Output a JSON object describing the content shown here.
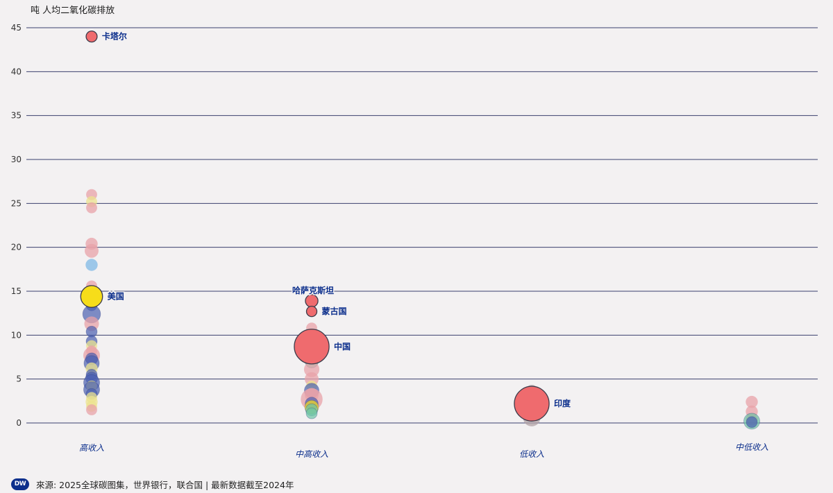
{
  "ylabel": "吨 人均二氧化碳排放",
  "footer": {
    "logo_text": "DW",
    "logo_color": "#0c2f8c",
    "source": "來源: 2025全球碳图集，世界银行，联合国 | 最新数据截至2024年"
  },
  "chart_data": {
    "type": "scatter",
    "ylabel": "吨 人均二氧化碳排放",
    "ylim": [
      0,
      45
    ],
    "yticks": [
      0,
      5,
      10,
      15,
      20,
      25,
      30,
      35,
      40,
      45
    ],
    "grid": true,
    "categories": [
      "高收入",
      "中高收入",
      "低收入",
      "中低收入"
    ],
    "colors": {
      "red": "#ef6b6e",
      "red_light": "#e8a1a8",
      "yellow": "#f6dd1a",
      "yellow_light": "#ece38f",
      "blue": "#4a60b0",
      "light_blue": "#7fb8e6",
      "teal": "#6cc4a6",
      "gray": "#b2a2a6",
      "label": "#0c2f8c"
    },
    "highlights": [
      {
        "label": "卡塔尔",
        "category": "高收入",
        "y": 44.0,
        "size": 0.3,
        "color": "red"
      },
      {
        "label": "美国",
        "category": "高收入",
        "y": 14.4,
        "size": 2.0,
        "color": "yellow"
      },
      {
        "label": "哈萨克斯坦",
        "category": "中高收入",
        "y": 13.9,
        "size": 0.45,
        "color": "red"
      },
      {
        "label": "蒙古国",
        "category": "中高收入",
        "y": 12.7,
        "size": 0.25,
        "color": "red"
      },
      {
        "label": "中国",
        "category": "中高收入",
        "y": 8.7,
        "size": 6.0,
        "color": "red"
      },
      {
        "label": "印度",
        "category": "低收入",
        "y": 2.2,
        "size": 6.0,
        "color": "red"
      }
    ],
    "points": [
      {
        "category": "高收入",
        "y": 26.0,
        "size": 0.3,
        "color": "red_light"
      },
      {
        "category": "高收入",
        "y": 25.2,
        "size": 0.3,
        "color": "yellow_light"
      },
      {
        "category": "高收入",
        "y": 24.5,
        "size": 0.3,
        "color": "red_light"
      },
      {
        "category": "高收入",
        "y": 20.4,
        "size": 0.4,
        "color": "red_light"
      },
      {
        "category": "高收入",
        "y": 19.6,
        "size": 0.6,
        "color": "red_light"
      },
      {
        "category": "高收入",
        "y": 18.0,
        "size": 0.4,
        "color": "light_blue"
      },
      {
        "category": "高收入",
        "y": 15.6,
        "size": 0.3,
        "color": "red_light"
      },
      {
        "category": "高收入",
        "y": 13.4,
        "size": 0.3,
        "color": "blue"
      },
      {
        "category": "高收入",
        "y": 12.4,
        "size": 1.2,
        "color": "blue"
      },
      {
        "category": "高收入",
        "y": 11.3,
        "size": 0.7,
        "color": "red_light"
      },
      {
        "category": "高收入",
        "y": 10.4,
        "size": 0.3,
        "color": "blue"
      },
      {
        "category": "高收入",
        "y": 9.3,
        "size": 0.3,
        "color": "blue"
      },
      {
        "category": "高收入",
        "y": 8.8,
        "size": 0.3,
        "color": "yellow_light"
      },
      {
        "category": "高收入",
        "y": 8.2,
        "size": 0.3,
        "color": "red_light"
      },
      {
        "category": "高收入",
        "y": 7.7,
        "size": 1.0,
        "color": "red_light"
      },
      {
        "category": "高收入",
        "y": 7.3,
        "size": 0.4,
        "color": "blue"
      },
      {
        "category": "高收入",
        "y": 6.8,
        "size": 0.8,
        "color": "blue"
      },
      {
        "category": "高收入",
        "y": 6.2,
        "size": 0.4,
        "color": "yellow_light"
      },
      {
        "category": "高收入",
        "y": 5.5,
        "size": 0.3,
        "color": "blue"
      },
      {
        "category": "高收入",
        "y": 5.1,
        "size": 0.4,
        "color": "blue"
      },
      {
        "category": "高收入",
        "y": 4.6,
        "size": 0.9,
        "color": "blue"
      },
      {
        "category": "高收入",
        "y": 4.2,
        "size": 0.3,
        "color": "yellow_light"
      },
      {
        "category": "高收入",
        "y": 3.8,
        "size": 0.9,
        "color": "blue"
      },
      {
        "category": "高收入",
        "y": 3.3,
        "size": 0.3,
        "color": "blue"
      },
      {
        "category": "高收入",
        "y": 2.9,
        "size": 0.3,
        "color": "yellow_light"
      },
      {
        "category": "高收入",
        "y": 2.4,
        "size": 0.4,
        "color": "yellow_light"
      },
      {
        "category": "高收入",
        "y": 1.9,
        "size": 0.3,
        "color": "yellow_light"
      },
      {
        "category": "高收入",
        "y": 1.5,
        "size": 0.3,
        "color": "red_light"
      },
      {
        "category": "中高收入",
        "y": 10.8,
        "size": 0.3,
        "color": "red_light"
      },
      {
        "category": "中高收入",
        "y": 8.0,
        "size": 0.4,
        "color": "red_light"
      },
      {
        "category": "中高收入",
        "y": 7.0,
        "size": 0.5,
        "color": "teal"
      },
      {
        "category": "中高收入",
        "y": 6.1,
        "size": 0.8,
        "color": "red_light"
      },
      {
        "category": "中高收入",
        "y": 5.0,
        "size": 0.6,
        "color": "red_light"
      },
      {
        "category": "中高收入",
        "y": 4.2,
        "size": 0.3,
        "color": "yellow_light"
      },
      {
        "category": "中高收入",
        "y": 3.7,
        "size": 0.7,
        "color": "blue"
      },
      {
        "category": "中高收入",
        "y": 3.2,
        "size": 0.6,
        "color": "red_light"
      },
      {
        "category": "中高收入",
        "y": 2.7,
        "size": 2.0,
        "color": "red_light"
      },
      {
        "category": "中高收入",
        "y": 2.2,
        "size": 0.5,
        "color": "blue"
      },
      {
        "category": "中高收入",
        "y": 1.8,
        "size": 0.6,
        "color": "yellow"
      },
      {
        "category": "中高收入",
        "y": 1.5,
        "size": 0.4,
        "color": "teal"
      },
      {
        "category": "中高收入",
        "y": 1.1,
        "size": 0.3,
        "color": "teal"
      },
      {
        "category": "低收入",
        "y": 3.6,
        "size": 0.5,
        "color": "gray"
      },
      {
        "category": "低收入",
        "y": 1.2,
        "size": 0.7,
        "color": "red_light"
      },
      {
        "category": "低收入",
        "y": 0.6,
        "size": 1.1,
        "color": "gray"
      },
      {
        "category": "中低收入",
        "y": 2.4,
        "size": 0.4,
        "color": "red_light"
      },
      {
        "category": "中低收入",
        "y": 1.3,
        "size": 0.4,
        "color": "red_light"
      },
      {
        "category": "中低收入",
        "y": 0.4,
        "size": 0.4,
        "color": "red_light"
      },
      {
        "category": "中低收入",
        "y": 0.2,
        "size": 0.9,
        "color": "teal"
      },
      {
        "category": "中低收入",
        "y": 0.1,
        "size": 0.3,
        "color": "blue"
      }
    ]
  }
}
